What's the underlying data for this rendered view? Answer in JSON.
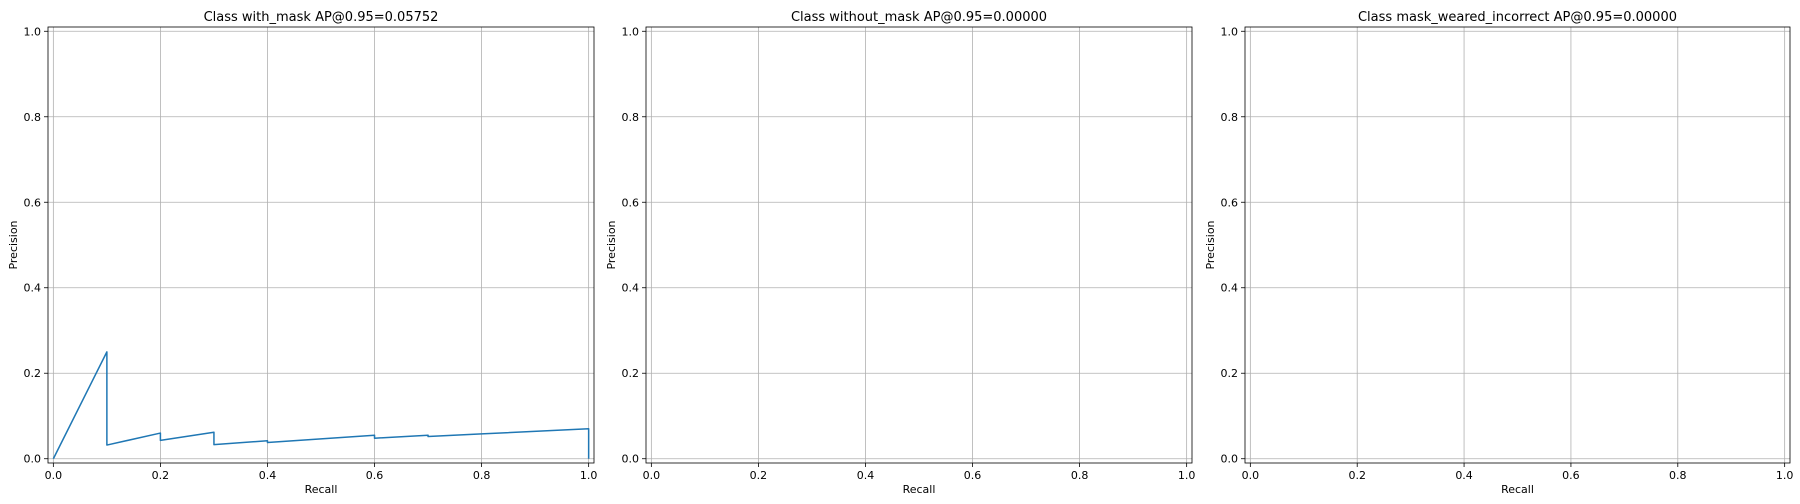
{
  "chart_data": [
    {
      "type": "line",
      "title": "Class with_mask AP@0.95=0.05752",
      "xlabel": "Recall",
      "ylabel": "Precision",
      "xlim": [
        -0.01,
        1.01
      ],
      "ylim": [
        -0.01,
        1.01
      ],
      "xticks": [
        0.0,
        0.2,
        0.4,
        0.6,
        0.8,
        1.0
      ],
      "yticks": [
        0.0,
        0.2,
        0.4,
        0.6,
        0.8,
        1.0
      ],
      "grid": true,
      "line_color": "#1f77b4",
      "series": [
        {
          "x": [
            0.0,
            0.1,
            0.1,
            0.2,
            0.2,
            0.3,
            0.3,
            0.4,
            0.4,
            0.6,
            0.6,
            0.7,
            0.7,
            0.8,
            0.8,
            1.0,
            1.0
          ],
          "y": [
            0.0,
            0.25,
            0.032,
            0.06,
            0.043,
            0.062,
            0.033,
            0.042,
            0.038,
            0.055,
            0.048,
            0.055,
            0.052,
            0.058,
            0.058,
            0.07,
            0.0
          ]
        }
      ]
    },
    {
      "type": "line",
      "title": "Class without_mask AP@0.95=0.00000",
      "xlabel": "Recall",
      "ylabel": "Precision",
      "xlim": [
        -0.01,
        1.01
      ],
      "ylim": [
        -0.01,
        1.01
      ],
      "xticks": [
        0.0,
        0.2,
        0.4,
        0.6,
        0.8,
        1.0
      ],
      "yticks": [
        0.0,
        0.2,
        0.4,
        0.6,
        0.8,
        1.0
      ],
      "grid": true,
      "line_color": "#1f77b4",
      "series": []
    },
    {
      "type": "line",
      "title": "Class mask_weared_incorrect AP@0.95=0.00000",
      "xlabel": "Recall",
      "ylabel": "Precision",
      "xlim": [
        -0.01,
        1.01
      ],
      "ylim": [
        -0.01,
        1.01
      ],
      "xticks": [
        0.0,
        0.2,
        0.4,
        0.6,
        0.8,
        1.0
      ],
      "yticks": [
        0.0,
        0.2,
        0.4,
        0.6,
        0.8,
        1.0
      ],
      "grid": true,
      "line_color": "#1f77b4",
      "series": []
    }
  ]
}
